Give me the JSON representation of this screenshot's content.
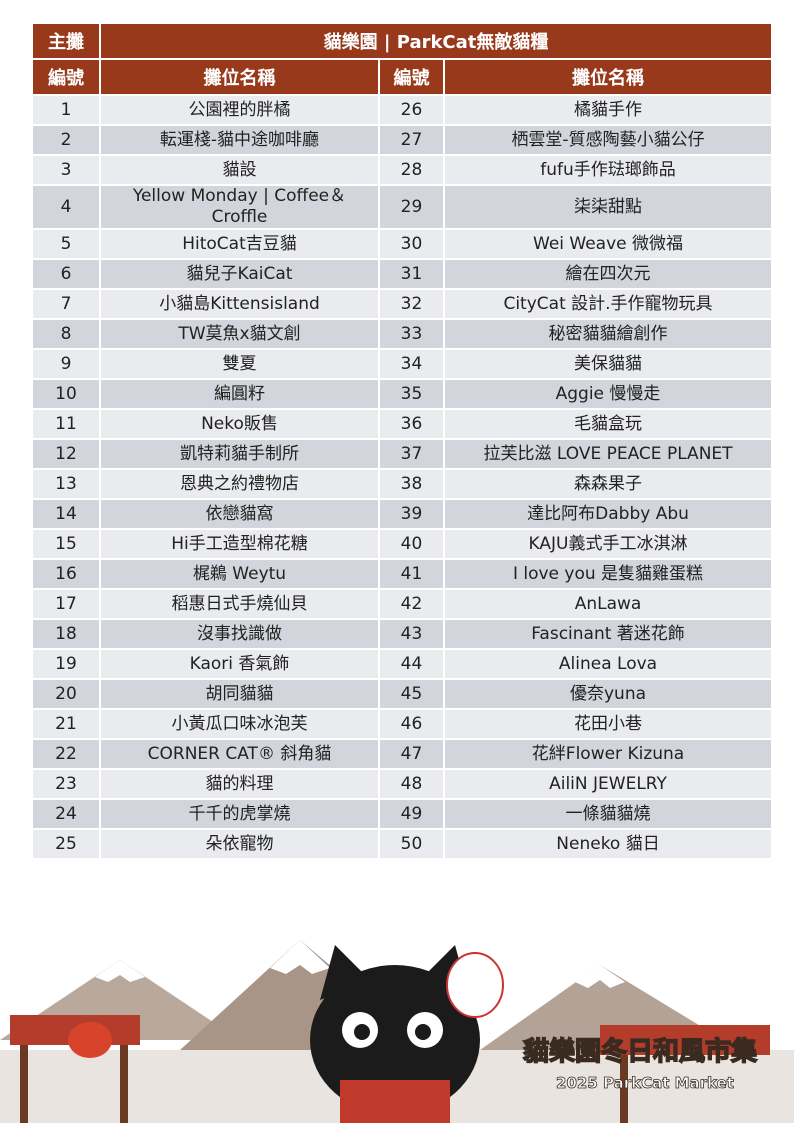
{
  "table": {
    "header": [
      "主攤",
      "貓樂園 | ParkCat無敵貓糧"
    ],
    "columns": [
      "編號",
      "攤位名稱",
      "編號",
      "攤位名稱"
    ],
    "rows": [
      [
        1,
        "公園裡的胖橘",
        26,
        "橘貓手作"
      ],
      [
        2,
        "転運棧-貓中途咖啡廳",
        27,
        "栖雲堂-質感陶藝小貓公仔"
      ],
      [
        3,
        "貓設",
        28,
        "fufu手作琺瑯飾品"
      ],
      [
        4,
        "Yellow Monday | Coffee＆Croffle",
        29,
        "柒柒甜點"
      ],
      [
        5,
        "HitoCat吉豆貓",
        30,
        "Wei Weave 微微福"
      ],
      [
        6,
        "貓兒子KaiCat",
        31,
        "繪在四次元"
      ],
      [
        7,
        "小貓島Kittensisland",
        32,
        "CityCat 設計.手作寵物玩具"
      ],
      [
        8,
        "TW莫魚x貓文創",
        33,
        "秘密貓貓繪創作"
      ],
      [
        9,
        "雙夏",
        34,
        "美保貓貓"
      ],
      [
        10,
        "編圓籽",
        35,
        "Aggie 慢慢走"
      ],
      [
        11,
        "Neko販售",
        36,
        "毛貓盒玩"
      ],
      [
        12,
        "凱特莉貓手制所",
        37,
        "拉芙比滋 LOVE PEACE PLANET"
      ],
      [
        13,
        "恩典之約禮物店",
        38,
        "森森果子"
      ],
      [
        14,
        "依戀貓窩",
        39,
        "達比阿布Dabby Abu"
      ],
      [
        15,
        "Hi手工造型棉花糖",
        40,
        "KAJU義式手工冰淇淋"
      ],
      [
        16,
        "梶鵜 Weytu",
        41,
        "I love you 是隻貓雞蛋糕"
      ],
      [
        17,
        "稻惠日式手燒仙貝",
        42,
        "AnLawa"
      ],
      [
        18,
        "沒事找識做",
        43,
        "Fascinant 著迷花飾"
      ],
      [
        19,
        "Kaori 香氣飾",
        44,
        "Alinea Lova"
      ],
      [
        20,
        "胡同貓貓",
        45,
        "優奈yuna"
      ],
      [
        21,
        "小黃瓜口味冰泡芙",
        46,
        "花田小巷"
      ],
      [
        22,
        "CORNER CAT® 斜角貓",
        47,
        "花絆Flower Kizuna"
      ],
      [
        23,
        "貓的料理",
        48,
        "AiliN JEWELRY"
      ],
      [
        24,
        "千千的虎掌燒",
        49,
        "一條貓貓燒"
      ],
      [
        25,
        "朵依寵物",
        50,
        "Neneko 貓日"
      ]
    ]
  },
  "banner": {
    "title": "貓樂園冬日和風市集",
    "subtitle": "2025 ParkCat Market"
  }
}
